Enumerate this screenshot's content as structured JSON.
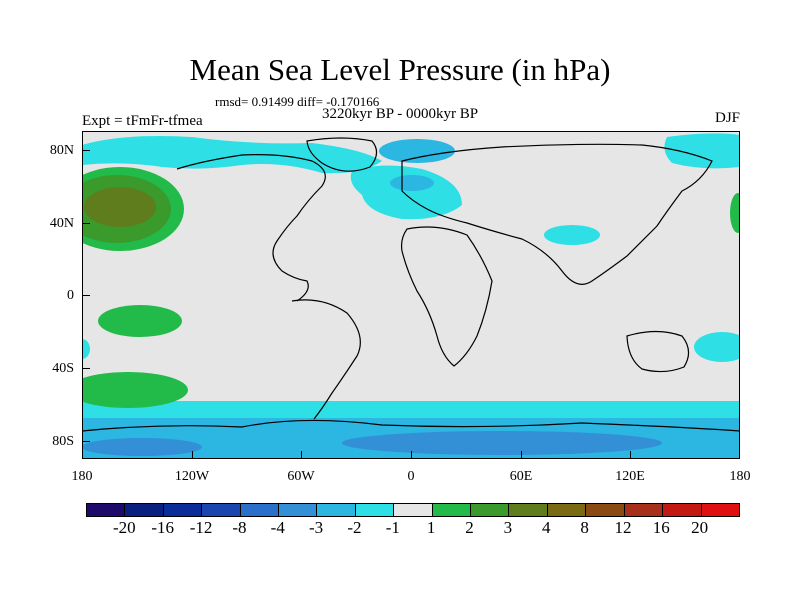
{
  "title": "Mean Sea Level Pressure (in hPa)",
  "stats": "rmsd= 0.91499 diff= -0.170166",
  "period": "3220kyr BP - 0000kyr BP",
  "experiment": "Expt = tFmFr-tfmea",
  "season": "DJF",
  "axes": {
    "y_labels": [
      "80N",
      "40N",
      "0",
      "40S",
      "80S"
    ],
    "x_labels": [
      "180",
      "120W",
      "60W",
      "0",
      "60E",
      "120E",
      "180"
    ]
  },
  "colorbar": {
    "labels": [
      "-20",
      "-16",
      "-12",
      "-8",
      "-4",
      "-3",
      "-2",
      "-1",
      "1",
      "2",
      "3",
      "4",
      "8",
      "12",
      "16",
      "20"
    ],
    "colors": [
      "#1d0a6b",
      "#08207f",
      "#0a2d9a",
      "#1b46b0",
      "#2a6fc9",
      "#3390d6",
      "#2cb6e2",
      "#2ee0e6",
      "#e6e6e6",
      "#22bb4a",
      "#3a9a2c",
      "#5f7d1c",
      "#7a6a14",
      "#8a4a14",
      "#a6301a",
      "#c21a12",
      "#e01010"
    ]
  }
}
